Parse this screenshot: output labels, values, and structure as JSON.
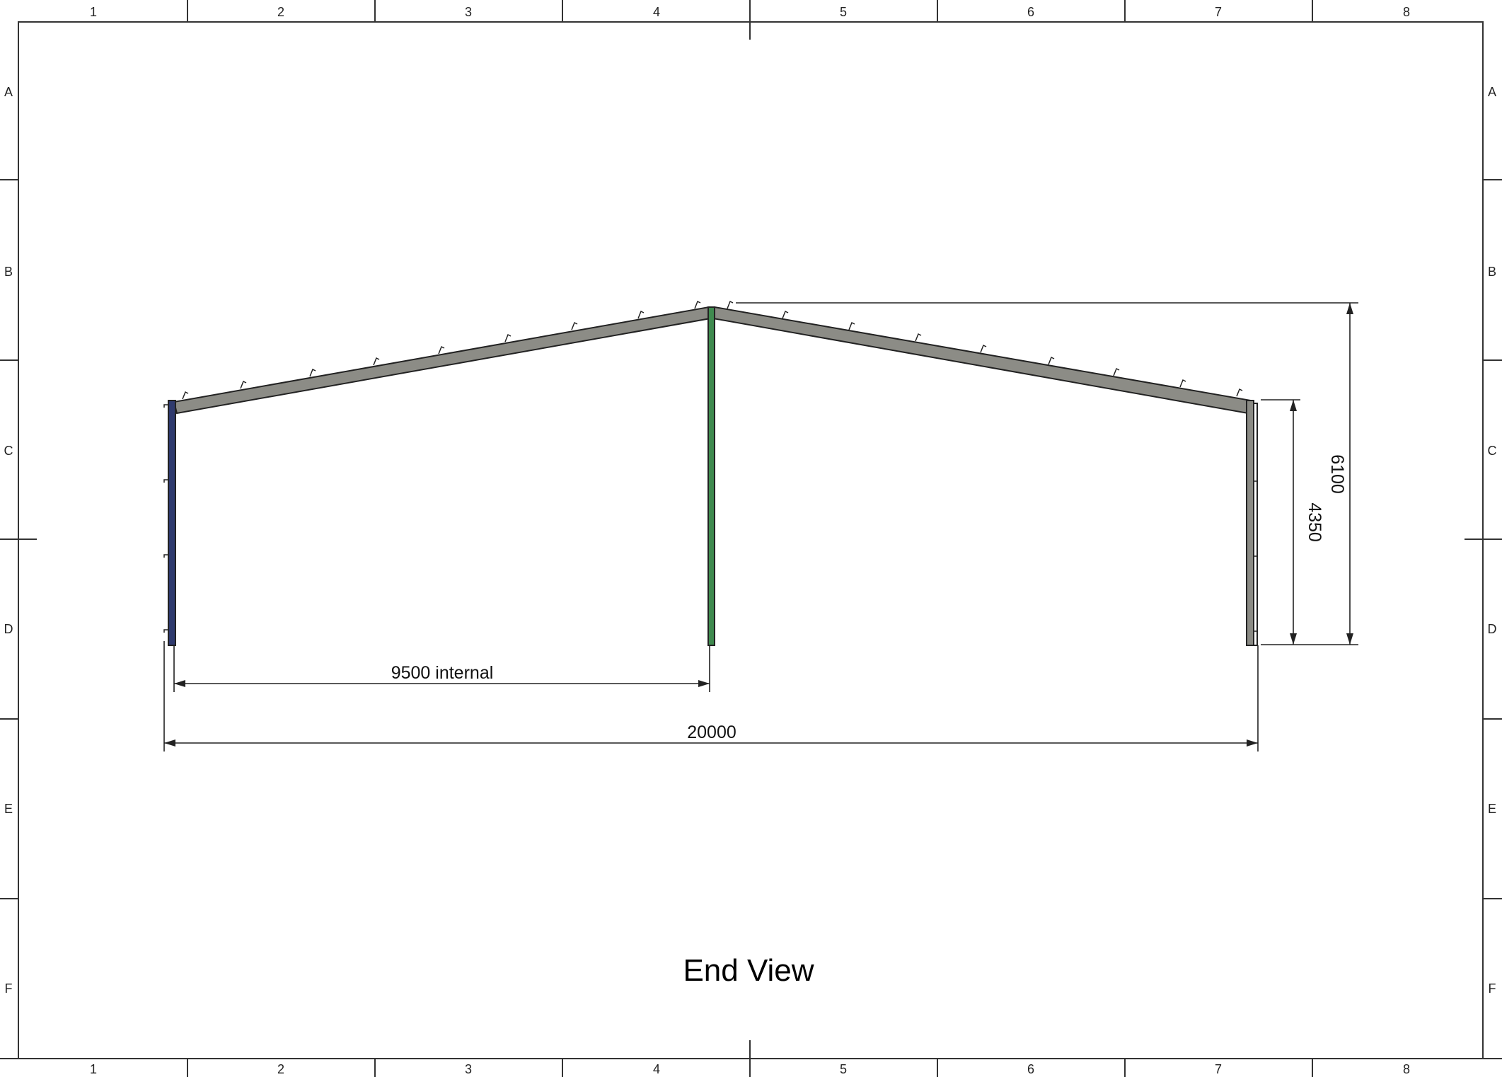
{
  "sheet": {
    "column_labels": [
      "1",
      "2",
      "3",
      "4",
      "5",
      "6",
      "7",
      "8"
    ],
    "row_labels": [
      "A",
      "B",
      "C",
      "D",
      "E",
      "F"
    ]
  },
  "view": {
    "title": "End View"
  },
  "dimensions": {
    "internal_span": "9500 internal",
    "overall_width": "20000",
    "eaves_height": "4350",
    "apex_height": "6100"
  },
  "members": {
    "left_column_color": "#2f3a6e",
    "center_column_color": "#3f8a4f",
    "right_column_color": "#8a8a84",
    "rafter_color": "#8c8c86"
  }
}
